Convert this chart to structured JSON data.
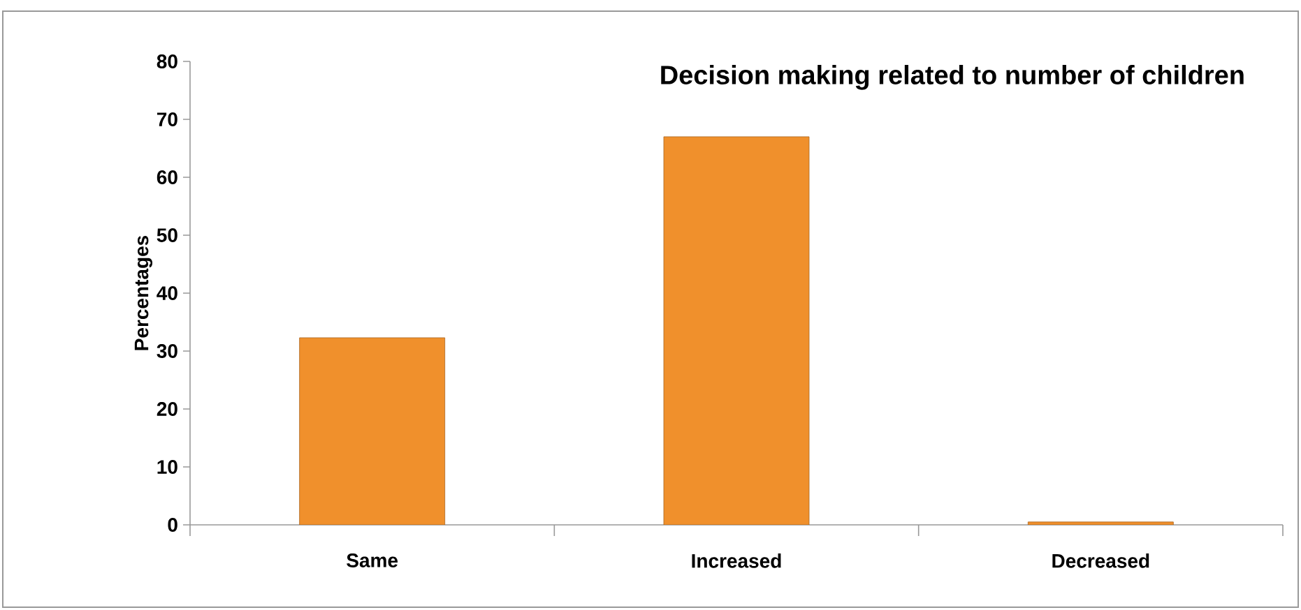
{
  "chart_data": {
    "type": "bar",
    "title": "Decision making related to number of children",
    "ylabel": "Percentages",
    "categories": [
      "Same",
      "Increased",
      "Decreased"
    ],
    "values": [
      32.3,
      67,
      0.5
    ],
    "color": "#f0902c",
    "ylim": [
      0,
      80
    ],
    "yticks": [
      0,
      10,
      20,
      30,
      40,
      50,
      60,
      70,
      80
    ]
  }
}
